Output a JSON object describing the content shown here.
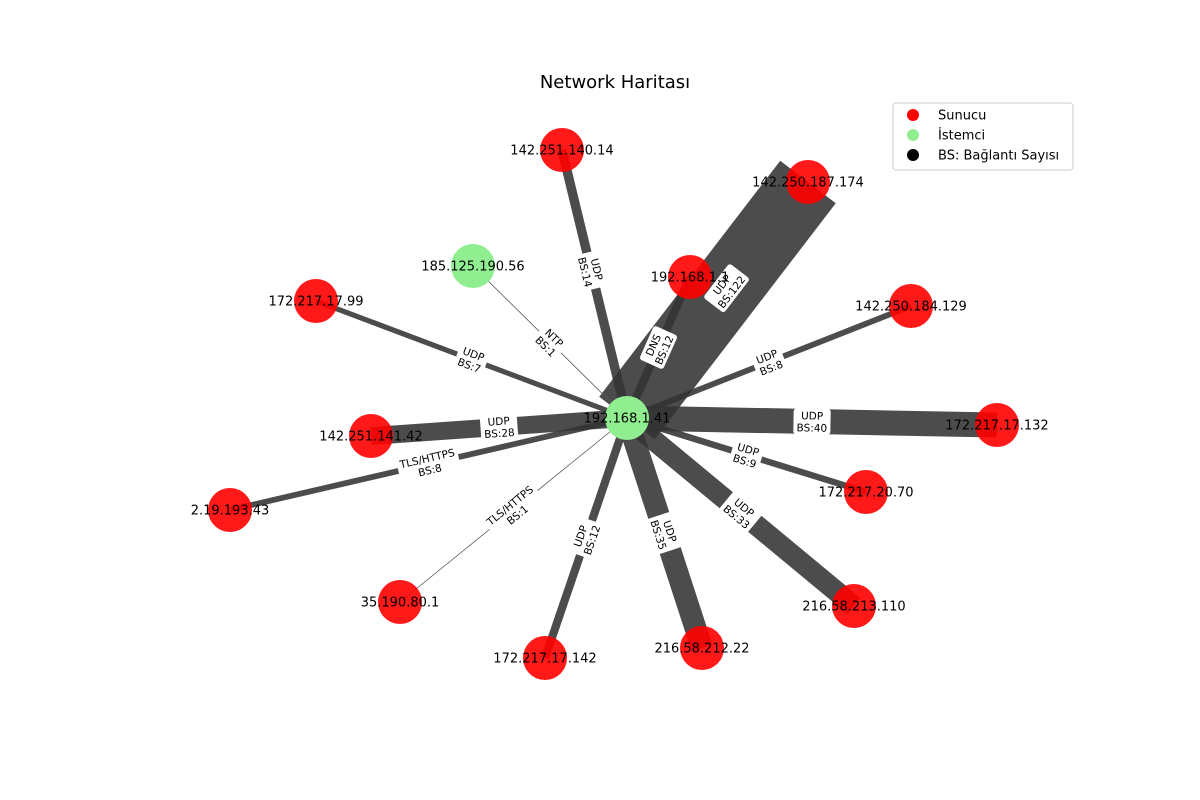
{
  "title": "Network Haritası",
  "colors": {
    "server": "#ff0000",
    "client": "#90ee90",
    "edge": "#333333",
    "edge_label_bg": "#ffffff",
    "legend_count": "#000000"
  },
  "legend": [
    {
      "label": "Sunucu",
      "kind": "server"
    },
    {
      "label": "İstemci",
      "kind": "client"
    },
    {
      "label": "BS: Bağlantı Sayısı",
      "kind": "count"
    }
  ],
  "center": {
    "id": "192.168.1.41",
    "kind": "client"
  },
  "nodes": [
    {
      "id": "142.251.140.14",
      "kind": "server",
      "protocol": "UDP",
      "count_label": "BS:14",
      "count": 14
    },
    {
      "id": "142.250.187.174",
      "kind": "server",
      "protocol": "UDP",
      "count_label": "BS:122",
      "count": 122
    },
    {
      "id": "192.168.1.1",
      "kind": "server",
      "protocol": "DNS",
      "count_label": "BS:12",
      "count": 12
    },
    {
      "id": "185.125.190.56",
      "kind": "client",
      "protocol": "NTP",
      "count_label": "BS:1",
      "count": 1
    },
    {
      "id": "172.217.17.99",
      "kind": "server",
      "protocol": "UDP",
      "count_label": "BS:7",
      "count": 7
    },
    {
      "id": "142.250.184.129",
      "kind": "server",
      "protocol": "UDP",
      "count_label": "BS:8",
      "count": 8
    },
    {
      "id": "172.217.17.132",
      "kind": "server",
      "protocol": "UDP",
      "count_label": "BS:40",
      "count": 40
    },
    {
      "id": "142.251.141.42",
      "kind": "server",
      "protocol": "UDP",
      "count_label": "BS:28",
      "count": 28
    },
    {
      "id": "2.19.193.43",
      "kind": "server",
      "protocol": "TLS/HTTPS",
      "count_label": "BS:8",
      "count": 8
    },
    {
      "id": "172.217.20.70",
      "kind": "server",
      "protocol": "UDP",
      "count_label": "BS:9",
      "count": 9
    },
    {
      "id": "35.190.80.1",
      "kind": "server",
      "protocol": "TLS/HTTPS",
      "count_label": "BS:1",
      "count": 1
    },
    {
      "id": "216.58.213.110",
      "kind": "server",
      "protocol": "UDP",
      "count_label": "BS:33",
      "count": 33
    },
    {
      "id": "172.217.17.142",
      "kind": "server",
      "protocol": "UDP",
      "count_label": "BS:12",
      "count": 12
    },
    {
      "id": "216.58.212.22",
      "kind": "server",
      "protocol": "UDP",
      "count_label": "BS:35",
      "count": 35
    }
  ]
}
